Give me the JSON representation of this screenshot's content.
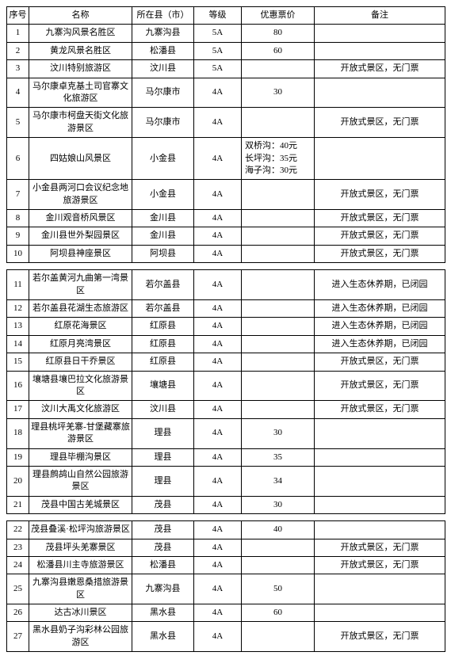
{
  "headers": {
    "num": "序号",
    "name": "名称",
    "county": "所在县（市）",
    "grade": "等级",
    "price": "优惠票价",
    "remark": "备注"
  },
  "section1": [
    {
      "num": "1",
      "name": "九寨沟风景名胜区",
      "county": "九寨沟县",
      "grade": "5A",
      "price": "80",
      "remark": ""
    },
    {
      "num": "2",
      "name": "黄龙风景名胜区",
      "county": "松潘县",
      "grade": "5A",
      "price": "60",
      "remark": ""
    },
    {
      "num": "3",
      "name": "汶川特别旅游区",
      "county": "汶川县",
      "grade": "5A",
      "price": "",
      "remark": "开放式景区，无门票"
    },
    {
      "num": "4",
      "name": "马尔康卓克基土司官寨文化旅游区",
      "county": "马尔康市",
      "grade": "4A",
      "price": "30",
      "remark": ""
    },
    {
      "num": "5",
      "name": "马尔康市柯盘天街文化旅游景区",
      "county": "马尔康市",
      "grade": "4A",
      "price": "",
      "remark": "开放式景区，无门票"
    },
    {
      "num": "6",
      "name": "四姑娘山风景区",
      "county": "小金县",
      "grade": "4A",
      "price": "双桥沟：40元\n长坪沟：35元\n海子沟：30元",
      "remark": ""
    },
    {
      "num": "7",
      "name": "小金县两河口会议纪念地旅游景区",
      "county": "小金县",
      "grade": "4A",
      "price": "",
      "remark": "开放式景区，无门票"
    },
    {
      "num": "8",
      "name": "金川观音桥风景区",
      "county": "金川县",
      "grade": "4A",
      "price": "",
      "remark": "开放式景区，无门票"
    },
    {
      "num": "9",
      "name": "金川县世外梨园景区",
      "county": "金川县",
      "grade": "4A",
      "price": "",
      "remark": "开放式景区，无门票"
    },
    {
      "num": "10",
      "name": "阿坝县神座景区",
      "county": "阿坝县",
      "grade": "4A",
      "price": "",
      "remark": "开放式景区，无门票"
    }
  ],
  "section2": [
    {
      "num": "11",
      "name": "若尔盖黄河九曲第一湾景区",
      "county": "若尔盖县",
      "grade": "4A",
      "price": "",
      "remark": "进入生态休养期，已闭园"
    },
    {
      "num": "12",
      "name": "若尔盖县花湖生态旅游区",
      "county": "若尔盖县",
      "grade": "4A",
      "price": "",
      "remark": "进入生态休养期，已闭园"
    },
    {
      "num": "13",
      "name": "红原花海景区",
      "county": "红原县",
      "grade": "4A",
      "price": "",
      "remark": "进入生态休养期，已闭园"
    },
    {
      "num": "14",
      "name": "红原月亮湾景区",
      "county": "红原县",
      "grade": "4A",
      "price": "",
      "remark": "进入生态休养期，已闭园"
    },
    {
      "num": "15",
      "name": "红原县日干乔景区",
      "county": "红原县",
      "grade": "4A",
      "price": "",
      "remark": "开放式景区，无门票"
    },
    {
      "num": "16",
      "name": "壤塘县壤巴拉文化旅游景区",
      "county": "壤塘县",
      "grade": "4A",
      "price": "",
      "remark": "开放式景区，无门票"
    },
    {
      "num": "17",
      "name": "汶川大禹文化旅游区",
      "county": "汶川县",
      "grade": "4A",
      "price": "",
      "remark": "开放式景区，无门票"
    },
    {
      "num": "18",
      "name": "理县桃坪羌寨-甘堡藏寨旅游景区",
      "county": "理县",
      "grade": "4A",
      "price": "30",
      "remark": ""
    },
    {
      "num": "19",
      "name": "理县毕棚沟景区",
      "county": "理县",
      "grade": "4A",
      "price": "35",
      "remark": ""
    },
    {
      "num": "20",
      "name": "理县鹧鸪山自然公园旅游景区",
      "county": "理县",
      "grade": "4A",
      "price": "34",
      "remark": ""
    },
    {
      "num": "21",
      "name": "茂县中国古羌城景区",
      "county": "茂县",
      "grade": "4A",
      "price": "30",
      "remark": ""
    }
  ],
  "section3": [
    {
      "num": "22",
      "name": "茂县叠溪·松坪沟旅游景区",
      "county": "茂县",
      "grade": "4A",
      "price": "40",
      "remark": ""
    },
    {
      "num": "23",
      "name": "茂县坪头羌寨景区",
      "county": "茂县",
      "grade": "4A",
      "price": "",
      "remark": "开放式景区，无门票"
    },
    {
      "num": "24",
      "name": "松潘县川主寺旅游景区",
      "county": "松潘县",
      "grade": "4A",
      "price": "",
      "remark": "开放式景区，无门票"
    },
    {
      "num": "25",
      "name": "九寨沟县嫩恩桑措旅游景区",
      "county": "九寨沟县",
      "grade": "4A",
      "price": "50",
      "remark": ""
    },
    {
      "num": "26",
      "name": "达古冰川景区",
      "county": "黑水县",
      "grade": "4A",
      "price": "60",
      "remark": ""
    },
    {
      "num": "27",
      "name": "黑水县奶子沟彩林公园旅游区",
      "county": "黑水县",
      "grade": "4A",
      "price": "",
      "remark": "开放式景区，无门票"
    }
  ]
}
